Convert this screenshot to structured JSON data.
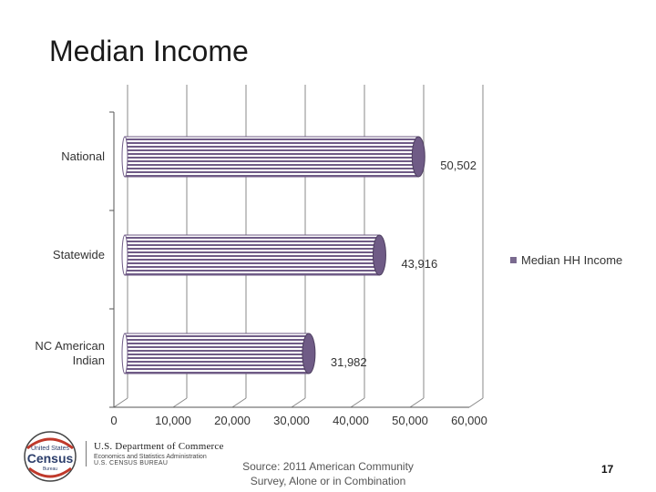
{
  "slide": {
    "title": "Median Income",
    "source": "Source: 2011 American Community Survey, Alone or in Combination",
    "page_number": "17"
  },
  "logo": {
    "seal_top": "United States",
    "seal_main": "Census",
    "seal_bottom": "Bureau",
    "agency_line1": "U.S. Department of Commerce",
    "agency_line2": "Economics and Statistics Administration",
    "agency_line3": "U.S. CENSUS BUREAU"
  },
  "colors": {
    "bar": "#6f5b86",
    "bar_light": "#e8e2f0",
    "grid": "#555555"
  },
  "chart_data": {
    "type": "bar",
    "orientation": "horizontal",
    "three_d": true,
    "categories": [
      "National",
      "Statewide",
      "NC American Indian"
    ],
    "series": [
      {
        "name": "Median HH Income",
        "values": [
          50502,
          43916,
          31982
        ],
        "labels": [
          "50,502",
          "43,916",
          "31,982"
        ]
      }
    ],
    "xlim": [
      0,
      60000
    ],
    "x_ticks": [
      0,
      10000,
      20000,
      30000,
      40000,
      50000,
      60000
    ],
    "x_tick_labels": [
      "0",
      "10,000",
      "20,000",
      "30,000",
      "40,000",
      "50,000",
      "60,000"
    ],
    "grid": true,
    "legend_position": "right"
  }
}
